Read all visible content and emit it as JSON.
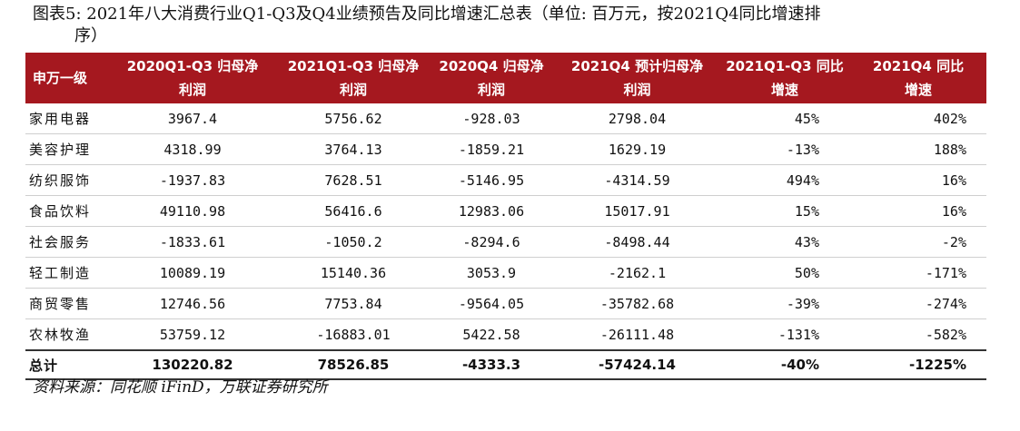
{
  "title_line1": "图表5:  2021年八大消费行业Q1-Q3及Q4业绩预告及同比增速汇总表（单位:  百万元，按2021Q4同比增速排",
  "title_line2": "序）",
  "columns": [
    [
      "申万一级",
      ""
    ],
    [
      "2020Q1-Q3 归母净",
      "利润"
    ],
    [
      "2021Q1-Q3 归母净",
      "利润"
    ],
    [
      "2020Q4 归母净",
      "利润"
    ],
    [
      "2021Q4 预计归母净",
      "利润"
    ],
    [
      "2021Q1-Q3 同比",
      "增速"
    ],
    [
      "2021Q4 同比",
      "增速"
    ]
  ],
  "rows": [
    [
      "家用电器",
      "3967.4",
      "5756.62",
      "-928.03",
      "2798.04",
      "45%",
      "402%"
    ],
    [
      "美容护理",
      "4318.99",
      "3764.13",
      "-1859.21",
      "1629.19",
      "-13%",
      "188%"
    ],
    [
      "纺织服饰",
      "-1937.83",
      "7628.51",
      "-5146.95",
      "-4314.59",
      "494%",
      "16%"
    ],
    [
      "食品饮料",
      "49110.98",
      "56416.6",
      "12983.06",
      "15017.91",
      "15%",
      "16%"
    ],
    [
      "社会服务",
      "-1833.61",
      "-1050.2",
      "-8294.6",
      "-8498.44",
      "43%",
      "-2%"
    ],
    [
      "轻工制造",
      "10089.19",
      "15140.36",
      "3053.9",
      "-2162.1",
      "50%",
      "-171%"
    ],
    [
      "商贸零售",
      "12746.56",
      "7753.84",
      "-9564.05",
      "-35782.68",
      "-39%",
      "-274%"
    ],
    [
      "农林牧渔",
      "53759.12",
      "-16883.01",
      "5422.58",
      "-26111.48",
      "-131%",
      "-582%"
    ]
  ],
  "total": [
    "总计",
    "130220.82",
    "78526.85",
    "-4333.3",
    "-57424.14",
    "-40%",
    "-1225%"
  ],
  "source": "资料来源：同花顺 iFinD，万联证券研究所",
  "colors": {
    "header_bg": "#a5181f",
    "header_text": "#ffffff"
  }
}
